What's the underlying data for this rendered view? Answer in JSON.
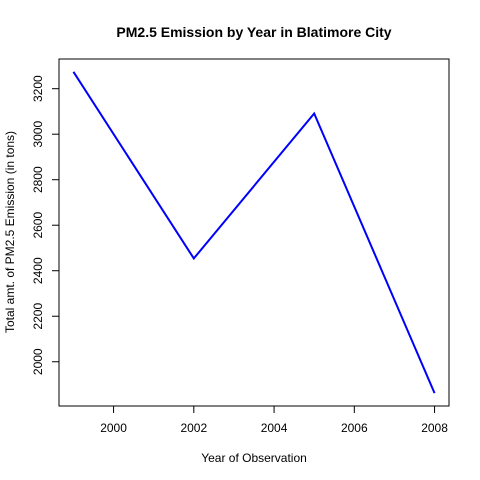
{
  "chart_data": {
    "type": "line",
    "title": "PM2.5 Emission by Year in Blatimore City",
    "xlabel": "Year of Observation",
    "ylabel": "Total amt. of PM2.5 Emission (in tons)",
    "x": [
      1999,
      2002,
      2005,
      2008
    ],
    "series": [
      {
        "values": [
          3274,
          2454,
          3091,
          1862
        ]
      }
    ],
    "xlim": [
      1999,
      2008
    ],
    "ylim": [
      1862,
      3274
    ],
    "xticks": [
      2000,
      2002,
      2004,
      2006,
      2008
    ],
    "yticks": [
      2000,
      2200,
      2400,
      2600,
      2800,
      3000,
      3200
    ],
    "xtick_labels": [
      "2000",
      "2002",
      "2004",
      "2006",
      "2008"
    ],
    "ytick_labels": [
      "2000",
      "2200",
      "2400",
      "2600",
      "2800",
      "3000",
      "3200"
    ],
    "line_color": "#0000ff",
    "grid": false,
    "legend": "none"
  }
}
